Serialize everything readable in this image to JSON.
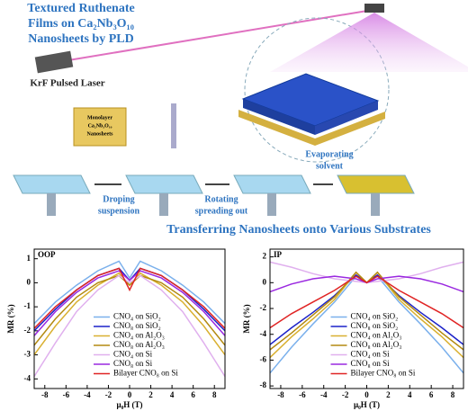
{
  "title": [
    "Textured Ruthenate",
    "Films on Ca₂Nb₃O₁₀",
    "Nanosheets by PLD"
  ],
  "laser_label": "KrF Pulsed Laser",
  "nanosheet_label": [
    "Monolayer",
    "Ca₂Nb₃O₁₀",
    "Nanosheets"
  ],
  "steps": [
    [
      "Droping",
      "suspension"
    ],
    [
      "Rotating",
      "spreading out"
    ],
    [
      "Evaporating",
      "solvent"
    ]
  ],
  "subtitle": "Transferring Nanosheets onto Various Substrates",
  "chart_data": [
    {
      "type": "line",
      "label": "OOP",
      "xlabel": "μ₀H (T)",
      "ylabel": "MR (%)",
      "legend": "bottom",
      "x": [
        -9,
        -7,
        -5,
        -3,
        -1,
        0,
        1,
        3,
        5,
        7,
        9
      ],
      "xlim": [
        -9,
        9
      ],
      "xticks": [
        -8,
        -6,
        -4,
        -2,
        0,
        2,
        4,
        6,
        8
      ],
      "ylim": [
        -4.4,
        1.4
      ],
      "yticks": [
        1,
        0,
        -1,
        -2,
        -3,
        -4
      ],
      "series": [
        {
          "name": "CNO₄ on SiO₂",
          "color": "#7ab0ec",
          "values": [
            -1.7,
            -0.8,
            -0.1,
            0.5,
            0.9,
            0.2,
            0.9,
            0.5,
            -0.1,
            -0.8,
            -1.7
          ]
        },
        {
          "name": "CNO₈ on SiO₂",
          "color": "#1c22c8",
          "values": [
            -2.0,
            -1.1,
            -0.3,
            0.3,
            0.6,
            0.1,
            0.6,
            0.3,
            -0.3,
            -1.1,
            -2.0
          ]
        },
        {
          "name": "CNO₄ on Al₂O₃",
          "color": "#d9b030",
          "values": [
            -3.0,
            -1.8,
            -0.8,
            -0.1,
            0.4,
            -0.1,
            0.4,
            -0.1,
            -0.8,
            -1.8,
            -3.0
          ]
        },
        {
          "name": "CNO₈ on Al₂O₃",
          "color": "#b38a10",
          "values": [
            -2.6,
            -1.5,
            -0.6,
            0.0,
            0.3,
            -0.1,
            0.3,
            0.0,
            -0.6,
            -1.5,
            -2.6
          ]
        },
        {
          "name": "CNO₄ on Si",
          "color": "#e0b0ee",
          "values": [
            -3.9,
            -2.5,
            -1.2,
            -0.3,
            0.3,
            0.0,
            0.3,
            -0.3,
            -1.2,
            -2.5,
            -3.9
          ]
        },
        {
          "name": "CNO₈ on Si",
          "color": "#9a28e0",
          "values": [
            -2.2,
            -1.2,
            -0.4,
            0.2,
            0.5,
            0.1,
            0.5,
            0.2,
            -0.4,
            -1.2,
            -2.2
          ]
        },
        {
          "name": "Bilayer CNO₈ on Si",
          "color": "#e02424",
          "values": [
            -1.9,
            -1.0,
            -0.3,
            0.3,
            0.6,
            -0.3,
            0.6,
            0.3,
            -0.3,
            -1.0,
            -1.9
          ]
        }
      ]
    },
    {
      "type": "line",
      "label": "IP",
      "xlabel": "μ₀H (T)",
      "ylabel": "MR (%)",
      "legend": "bottom",
      "x": [
        -9,
        -7,
        -5,
        -3,
        -1,
        0,
        1,
        3,
        5,
        7,
        9
      ],
      "xlim": [
        -9,
        9
      ],
      "xticks": [
        -8,
        -6,
        -4,
        -2,
        0,
        2,
        4,
        6,
        8
      ],
      "ylim": [
        -8.2,
        2.6
      ],
      "yticks": [
        2,
        0,
        -2,
        -4,
        -6,
        -8
      ],
      "series": [
        {
          "name": "CNO₄ on SiO₂",
          "color": "#7ab0ec",
          "values": [
            -7.0,
            -5.0,
            -3.2,
            -1.5,
            0.5,
            0.0,
            0.5,
            -1.5,
            -3.2,
            -5.0,
            -7.0
          ]
        },
        {
          "name": "CNO₈ on SiO₂",
          "color": "#1c22c8",
          "values": [
            -4.8,
            -3.5,
            -2.3,
            -1.0,
            0.6,
            0.0,
            0.6,
            -1.0,
            -2.3,
            -3.5,
            -4.8
          ]
        },
        {
          "name": "CNO₄ on Al₂O₃",
          "color": "#d9b030",
          "values": [
            -5.8,
            -4.2,
            -2.8,
            -1.3,
            0.8,
            0.0,
            0.8,
            -1.3,
            -2.8,
            -4.2,
            -5.8
          ]
        },
        {
          "name": "CNO₈ on Al₂O₃",
          "color": "#b38a10",
          "values": [
            -5.2,
            -3.9,
            -2.5,
            -1.1,
            0.8,
            0.0,
            0.8,
            -1.1,
            -2.5,
            -3.9,
            -5.2
          ]
        },
        {
          "name": "CNO₄ on Si",
          "color": "#e0b0ee",
          "values": [
            1.6,
            1.2,
            0.7,
            0.3,
            0.1,
            0.0,
            0.1,
            0.3,
            0.7,
            1.2,
            1.6
          ]
        },
        {
          "name": "CNO₈ on Si",
          "color": "#9a28e0",
          "values": [
            -0.7,
            -0.1,
            0.3,
            0.5,
            0.3,
            0.0,
            0.3,
            0.5,
            0.3,
            -0.1,
            -0.7
          ]
        },
        {
          "name": "Bilayer CNO₈ on Si",
          "color": "#e02424",
          "values": [
            -3.5,
            -2.4,
            -1.5,
            -0.6,
            0.5,
            0.0,
            0.5,
            -0.6,
            -1.5,
            -2.4,
            -3.5
          ]
        }
      ]
    }
  ]
}
